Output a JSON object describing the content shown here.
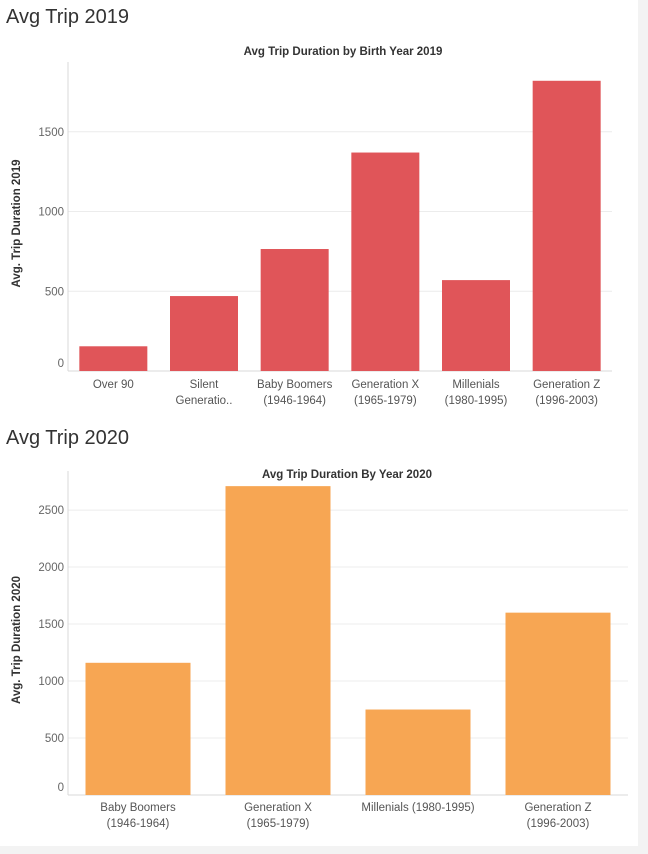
{
  "sections": [
    {
      "title": "Avg Trip 2019"
    },
    {
      "title": "Avg Trip 2020"
    }
  ],
  "chart_data": [
    {
      "type": "bar",
      "title": "Avg Trip Duration by Birth Year 2019",
      "xlabel": "",
      "ylabel": "Avg. Trip Duration 2019",
      "categories": [
        [
          "Over 90"
        ],
        [
          "Silent",
          "Generatio.."
        ],
        [
          "Baby Boomers",
          "(1946-1964)"
        ],
        [
          "Generation X",
          "(1965-1979)"
        ],
        [
          "Millenials",
          "(1980-1995)"
        ],
        [
          "Generation Z",
          "(1996-2003)"
        ]
      ],
      "values": [
        155,
        470,
        765,
        1370,
        570,
        1820
      ],
      "ylim": [
        0,
        1850
      ],
      "yticks": [
        0,
        500,
        1000,
        1500
      ],
      "color": "#e05559",
      "grid": true
    },
    {
      "type": "bar",
      "title": "Avg Trip Duration By Year 2020",
      "xlabel": "",
      "ylabel": "Avg. Trip Duration 2020",
      "categories": [
        [
          "Baby Boomers",
          "(1946-1964)"
        ],
        [
          "Generation X",
          "(1965-1979)"
        ],
        [
          "Millenials (1980-1995)"
        ],
        [
          "Generation Z",
          "(1996-2003)"
        ]
      ],
      "values": [
        1160,
        2710,
        750,
        1600
      ],
      "ylim": [
        0,
        2720
      ],
      "yticks": [
        0,
        500,
        1000,
        1500,
        2000,
        2500
      ],
      "color": "#f7a653",
      "grid": true
    }
  ]
}
